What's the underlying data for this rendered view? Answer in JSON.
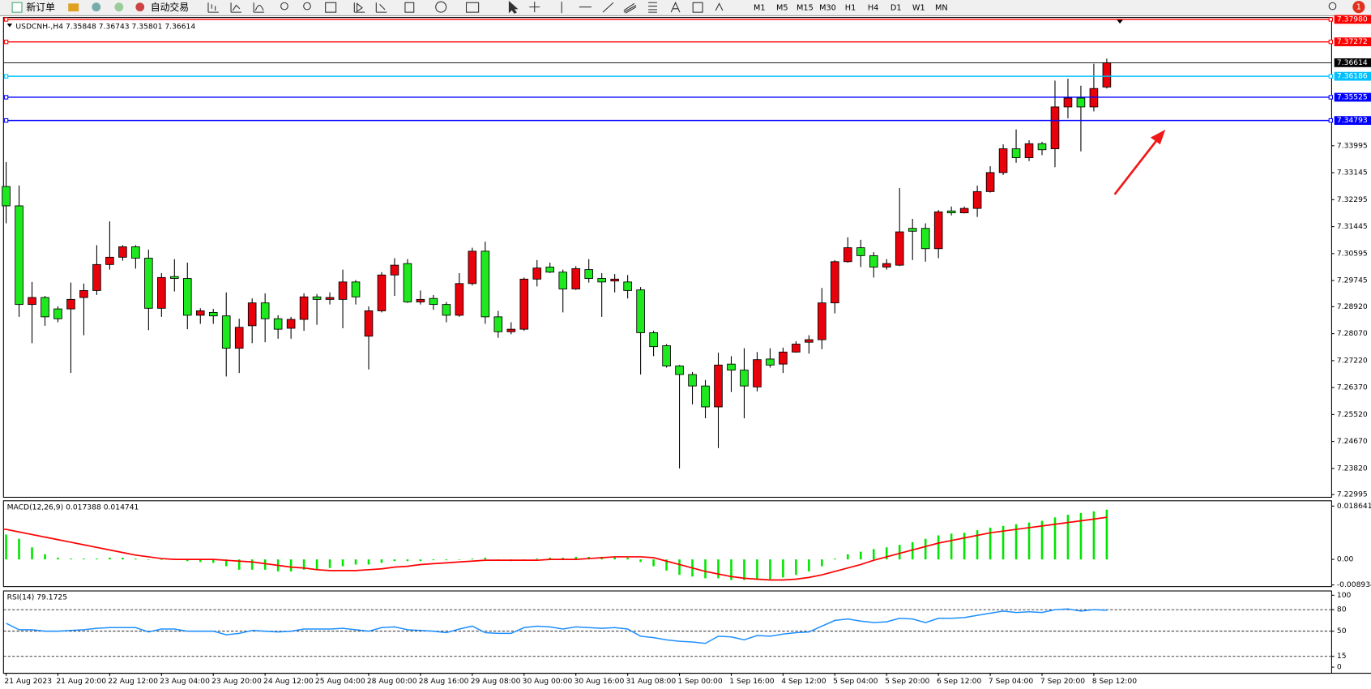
{
  "toolbar": {
    "new_order": "新订单",
    "auto_trading": "自动交易",
    "timeframes": [
      "M1",
      "M5",
      "M15",
      "M30",
      "H1",
      "H4",
      "D1",
      "W1",
      "MN"
    ]
  },
  "notification_count": 1,
  "chart_data": [
    {
      "type": "candlestick",
      "title": "USDCNH-,H4",
      "up_color": "#e8000b",
      "down_color": "#1ee81e",
      "ohlc": [
        [
          7.3271,
          7.3348,
          7.3155,
          7.321
        ],
        [
          7.321,
          7.3274,
          7.286,
          7.2899
        ],
        [
          7.2899,
          7.297,
          7.2777,
          7.2921
        ],
        [
          7.2921,
          7.2926,
          7.2832,
          7.286
        ],
        [
          7.2885,
          7.2893,
          7.2843,
          7.2854
        ],
        [
          7.2885,
          7.2968,
          7.2683,
          7.2915
        ],
        [
          7.2921,
          7.2965,
          7.2802,
          7.2943
        ],
        [
          7.2943,
          7.3086,
          7.2929,
          7.3025
        ],
        [
          7.3025,
          7.3161,
          7.3009,
          7.3048
        ],
        [
          7.3048,
          7.3086,
          7.3037,
          7.3081
        ],
        [
          7.3081,
          7.3086,
          7.3012,
          7.3045
        ],
        [
          7.3045,
          7.3072,
          7.2818,
          7.2887
        ],
        [
          7.2887,
          7.2998,
          7.286,
          7.2984
        ],
        [
          7.2987,
          7.3042,
          7.294,
          7.2981
        ],
        [
          7.2981,
          7.3031,
          7.2821,
          7.2865
        ],
        [
          7.2865,
          7.2887,
          7.2838,
          7.2879
        ],
        [
          7.2874,
          7.2885,
          7.2838,
          7.2863
        ],
        [
          7.2863,
          7.2937,
          7.2672,
          7.2761
        ],
        [
          7.2761,
          7.2854,
          7.2683,
          7.2827
        ],
        [
          7.2832,
          7.2918,
          7.2777,
          7.2904
        ],
        [
          7.2904,
          7.2934,
          7.278,
          7.2854
        ],
        [
          7.2854,
          7.2865,
          7.2791,
          7.2821
        ],
        [
          7.2824,
          7.286,
          7.2791,
          7.2852
        ],
        [
          7.2852,
          7.2934,
          7.2816,
          7.2923
        ],
        [
          7.2923,
          7.2932,
          7.2835,
          7.2915
        ],
        [
          7.2915,
          7.2937,
          7.2899,
          7.2921
        ],
        [
          7.2915,
          7.3009,
          7.2824,
          7.297
        ],
        [
          7.297,
          7.2976,
          7.2899,
          7.2923
        ],
        [
          7.2799,
          7.2893,
          7.2694,
          7.2879
        ],
        [
          7.2879,
          7.3001,
          7.2874,
          7.2992
        ],
        [
          7.2992,
          7.3045,
          7.2926,
          7.3023
        ],
        [
          7.3028,
          7.3042,
          7.2904,
          7.2907
        ],
        [
          7.2907,
          7.2943,
          7.2899,
          7.2915
        ],
        [
          7.2918,
          7.2929,
          7.2882,
          7.2899
        ],
        [
          7.2899,
          7.2907,
          7.2843,
          7.2865
        ],
        [
          7.2865,
          7.2998,
          7.286,
          7.2965
        ],
        [
          7.2965,
          7.3078,
          7.2959,
          7.3067
        ],
        [
          7.3067,
          7.3097,
          7.2838,
          7.286
        ],
        [
          7.286,
          7.2879,
          7.2794,
          7.2813
        ],
        [
          7.2813,
          7.2843,
          7.2805,
          7.2821
        ],
        [
          7.2821,
          7.2984,
          7.2816,
          7.2979
        ],
        [
          7.2979,
          7.3039,
          7.2956,
          7.3014
        ],
        [
          7.3017,
          7.3031,
          7.2998,
          7.3001
        ],
        [
          7.3001,
          7.3009,
          7.2874,
          7.2948
        ],
        [
          7.2948,
          7.302,
          7.2945,
          7.3012
        ],
        [
          7.3009,
          7.3042,
          7.2968,
          7.2981
        ],
        [
          7.2981,
          7.2998,
          7.286,
          7.297
        ],
        [
          7.2973,
          7.2995,
          7.2937,
          7.2979
        ],
        [
          7.297,
          7.2992,
          7.2918,
          7.2943
        ],
        [
          7.2945,
          7.2954,
          7.2678,
          7.281
        ],
        [
          7.281,
          7.2816,
          7.2736,
          7.2766
        ],
        [
          7.2769,
          7.2774,
          7.27,
          7.2705
        ],
        [
          7.2705,
          7.2708,
          7.2382,
          7.2678
        ],
        [
          7.2678,
          7.2686,
          7.2584,
          7.2642
        ],
        [
          7.2642,
          7.2661,
          7.254,
          7.2576
        ],
        [
          7.2576,
          7.2747,
          7.2446,
          7.2708
        ],
        [
          7.2711,
          7.2736,
          7.2623,
          7.2692
        ],
        [
          7.2692,
          7.2761,
          7.254,
          7.2642
        ],
        [
          7.2639,
          7.2749,
          7.2625,
          7.2725
        ],
        [
          7.2727,
          7.2761,
          7.27,
          7.2708
        ],
        [
          7.2711,
          7.2763,
          7.2683,
          7.2749
        ],
        [
          7.2749,
          7.2783,
          7.2747,
          7.2774
        ],
        [
          7.278,
          7.2802,
          7.2744,
          7.2788
        ],
        [
          7.2788,
          7.2951,
          7.2758,
          7.2904
        ],
        [
          7.2904,
          7.3039,
          7.2871,
          7.3034
        ],
        [
          7.3034,
          7.3111,
          7.3031,
          7.3078
        ],
        [
          7.3078,
          7.3103,
          7.3017,
          7.3053
        ],
        [
          7.3053,
          7.3064,
          7.2984,
          7.3017
        ],
        [
          7.3017,
          7.3042,
          7.3009,
          7.3028
        ],
        [
          7.3023,
          7.3266,
          7.302,
          7.3128
        ],
        [
          7.3139,
          7.3169,
          7.3039,
          7.313
        ],
        [
          7.3139,
          7.3155,
          7.3034,
          7.3075
        ],
        [
          7.3075,
          7.3197,
          7.3045,
          7.3191
        ],
        [
          7.3194,
          7.3208,
          7.318,
          7.3188
        ],
        [
          7.3188,
          7.3208,
          7.3186,
          7.3202
        ],
        [
          7.3202,
          7.3274,
          7.3175,
          7.3255
        ],
        [
          7.3255,
          7.3335,
          7.3252,
          7.3315
        ],
        [
          7.3315,
          7.3404,
          7.3307,
          7.339
        ],
        [
          7.339,
          7.3451,
          7.3346,
          7.3362
        ],
        [
          7.3362,
          7.3417,
          7.3351,
          7.3406
        ],
        [
          7.3406,
          7.3412,
          7.337,
          7.3387
        ],
        [
          7.339,
          7.3605,
          7.3332,
          7.3522
        ],
        [
          7.3522,
          7.3611,
          7.3486,
          7.355
        ],
        [
          7.355,
          7.3589,
          7.3382,
          7.3522
        ],
        [
          7.3522,
          7.3658,
          7.3508,
          7.358
        ],
        [
          7.35848,
          7.36743,
          7.35801,
          7.36614
        ]
      ],
      "ylim": [
        7.2291,
        7.3804
      ],
      "yticks": [
        {
          "value": 7.33995,
          "label": "7.33995"
        },
        {
          "value": 7.33145,
          "label": "7.33145"
        },
        {
          "value": 7.32295,
          "label": "7.32295"
        },
        {
          "value": 7.31445,
          "label": "7.31445"
        },
        {
          "value": 7.30595,
          "label": "7.30595"
        },
        {
          "value": 7.29745,
          "label": "7.29745"
        },
        {
          "value": 7.2892,
          "label": "7.28920"
        },
        {
          "value": 7.2807,
          "label": "7.28070"
        },
        {
          "value": 7.2722,
          "label": "7.27220"
        },
        {
          "value": 7.2637,
          "label": "7.26370"
        },
        {
          "value": 7.2552,
          "label": "7.25520"
        },
        {
          "value": 7.2467,
          "label": "7.24670"
        },
        {
          "value": 7.2382,
          "label": "7.23820"
        },
        {
          "value": 7.22995,
          "label": "7.22995"
        }
      ],
      "levels": [
        {
          "value": 7.3798,
          "label": "7.37980",
          "color": "#ff0000"
        },
        {
          "value": 7.37272,
          "color": "#ff0000"
        },
        {
          "value": 7.36186,
          "color": "#00bfff"
        },
        {
          "value": 7.35525,
          "color": "#0000ff"
        },
        {
          "value": 7.34793,
          "color": "#0000ff"
        }
      ],
      "xticks": [
        {
          "value": 0,
          "label": "21 Aug 2023"
        },
        {
          "value": 4,
          "label": "21 Aug 20:00"
        },
        {
          "value": 8,
          "label": "22 Aug 12:00"
        },
        {
          "value": 12,
          "label": "23 Aug 04:00"
        },
        {
          "value": 16,
          "label": "23 Aug 20:00"
        },
        {
          "value": 20,
          "label": "24 Aug 12:00"
        },
        {
          "value": 24,
          "label": "25 Aug 04:00"
        },
        {
          "value": 28,
          "label": "28 Aug 00:00"
        },
        {
          "value": 32,
          "label": "28 Aug 16:00"
        },
        {
          "value": 36,
          "label": "29 Aug 08:00"
        },
        {
          "value": 40,
          "label": "30 Aug 00:00"
        },
        {
          "value": 44,
          "label": "30 Aug 16:00"
        },
        {
          "value": 48,
          "label": "31 Aug 08:00"
        },
        {
          "value": 52,
          "label": "1 Sep 00:00"
        },
        {
          "value": 56,
          "label": "1 Sep 16:00"
        },
        {
          "value": 60,
          "label": "4 Sep 12:00"
        },
        {
          "value": 64,
          "label": "5 Sep 04:00"
        },
        {
          "value": 68,
          "label": "5 Sep 20:00"
        },
        {
          "value": 72,
          "label": "6 Sep 12:00"
        },
        {
          "value": 76,
          "label": "7 Sep 04:00"
        },
        {
          "value": 80,
          "label": "7 Sep 20:00"
        },
        {
          "value": 84,
          "label": "8 Sep 12:00"
        }
      ]
    },
    {
      "type": "macd",
      "title": "MACD(12,26,9)",
      "histogram": {
        "color": "#00e600",
        "values": [
          0.0087,
          0.0072,
          0.0042,
          0.0018,
          0.0006,
          0.0003,
          0.0003,
          0.0003,
          0.0006,
          0.0006,
          0.0003,
          0,
          0,
          0,
          -0.0006,
          -0.0009,
          -0.0012,
          -0.0024,
          -0.0036,
          -0.0036,
          -0.0036,
          -0.0042,
          -0.0042,
          -0.0036,
          -0.0036,
          -0.003,
          -0.0024,
          -0.0018,
          -0.0018,
          -0.0012,
          -0.0006,
          -0.0006,
          -0.0006,
          -0.0003,
          -0.0003,
          0,
          0.0003,
          0.0006,
          0,
          -0.0006,
          -0.0003,
          0.0003,
          0.0006,
          0.0006,
          0.0009,
          0.0009,
          0.0009,
          0.0009,
          0.0006,
          -0.0009,
          -0.0024,
          -0.0039,
          -0.0054,
          -0.006,
          -0.0066,
          -0.0066,
          -0.0072,
          -0.0072,
          -0.0072,
          -0.0069,
          -0.0063,
          -0.0054,
          -0.0042,
          -0.0024,
          0.0003,
          0.0018,
          0.0027,
          0.0036,
          0.0042,
          0.0051,
          0.006,
          0.0072,
          0.0084,
          0.009,
          0.0093,
          0.0102,
          0.0111,
          0.0117,
          0.0123,
          0.0129,
          0.0135,
          0.0147,
          0.0156,
          0.0162,
          0.0168,
          0.017388
        ]
      },
      "signal": {
        "color": "#ff0000",
        "values": [
          0.0105,
          0.0096,
          0.0087,
          0.0078,
          0.0069,
          0.006,
          0.0051,
          0.0042,
          0.0033,
          0.0024,
          0.0015,
          0.0009,
          0.0003,
          0,
          0,
          0,
          0,
          -0.0003,
          -0.0006,
          -0.0009,
          -0.0015,
          -0.0021,
          -0.0027,
          -0.003,
          -0.0036,
          -0.0039,
          -0.0039,
          -0.0039,
          -0.0036,
          -0.0033,
          -0.0027,
          -0.0024,
          -0.0018,
          -0.0015,
          -0.0012,
          -0.0009,
          -0.0006,
          -0.0003,
          -0.0003,
          -0.0003,
          -0.0003,
          -0.0003,
          0,
          0,
          0,
          0.0003,
          0.0006,
          0.0009,
          0.0009,
          0.0009,
          0.0006,
          -0.0006,
          -0.0018,
          -0.003,
          -0.0042,
          -0.0051,
          -0.006,
          -0.0066,
          -0.0069,
          -0.0072,
          -0.0072,
          -0.0069,
          -0.0063,
          -0.0054,
          -0.0042,
          -0.003,
          -0.0018,
          -0.0003,
          0.0009,
          0.0021,
          0.0033,
          0.0045,
          0.0057,
          0.0066,
          0.0075,
          0.0084,
          0.0093,
          0.0099,
          0.0105,
          0.0111,
          0.0117,
          0.0123,
          0.0129,
          0.0135,
          0.0141,
          0.014741
        ]
      },
      "ylim": [
        -0.0095,
        0.0205
      ],
      "yticks": [
        0.018641,
        {
          "value": 0,
          "label": "0.00"
        },
        -0.008934
      ]
    },
    {
      "type": "line",
      "title": "RSI(14)",
      "color": "#1e90ff",
      "values": [
        61,
        52,
        52,
        50,
        50,
        51,
        52,
        54,
        55,
        55,
        55,
        49,
        53,
        53,
        50,
        50,
        50,
        45,
        47,
        51,
        50,
        49,
        50,
        53,
        53,
        53,
        54,
        52,
        50,
        55,
        56,
        52,
        51,
        50,
        48,
        53,
        57,
        48,
        47,
        47,
        55,
        57,
        56,
        53,
        56,
        55,
        54,
        55,
        53,
        43,
        41,
        38,
        36,
        35,
        33,
        43,
        42,
        38,
        44,
        43,
        46,
        48,
        49,
        57,
        65,
        67,
        64,
        62,
        63,
        68,
        67,
        62,
        68,
        68,
        69,
        72,
        75,
        78,
        76,
        77,
        76,
        80,
        81,
        78,
        80,
        79.1725
      ],
      "ylim": [
        -8.5,
        106
      ],
      "yticks": [
        100,
        80,
        50,
        15,
        0
      ],
      "levels": [
        80,
        50,
        15
      ]
    }
  ]
}
